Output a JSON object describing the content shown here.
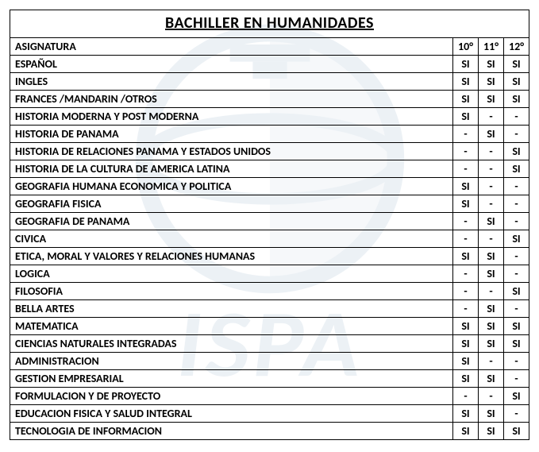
{
  "title": "BACHILLER EN HUMANIDADES",
  "header": {
    "subject": "ASIGNATURA",
    "g10": "10°",
    "g11": "11°",
    "g12": "12°"
  },
  "rows": [
    {
      "subject": "ESPAÑOL",
      "g10": "SI",
      "g11": "SI",
      "g12": "SI"
    },
    {
      "subject": "INGLES",
      "g10": "SI",
      "g11": "SI",
      "g12": "SI"
    },
    {
      "subject": "FRANCES /MANDARIN /OTROS",
      "g10": "SI",
      "g11": "SI",
      "g12": "SI"
    },
    {
      "subject": "HISTORIA MODERNA Y POST MODERNA",
      "g10": "SI",
      "g11": "-",
      "g12": "-"
    },
    {
      "subject": "HISTORIA DE PANAMA",
      "g10": "-",
      "g11": "SI",
      "g12": "-"
    },
    {
      "subject": "HISTORIA DE RELACIONES PANAMA Y ESTADOS UNIDOS",
      "g10": "-",
      "g11": "-",
      "g12": "SI"
    },
    {
      "subject": "HISTORIA DE LA CULTURA DE AMERICA LATINA",
      "g10": "-",
      "g11": "-",
      "g12": "SI"
    },
    {
      "subject": "GEOGRAFIA HUMANA ECONOMICA Y POLITICA",
      "g10": "SI",
      "g11": "-",
      "g12": "-"
    },
    {
      "subject": "GEOGRAFIA FISICA",
      "g10": "SI",
      "g11": "-",
      "g12": "-"
    },
    {
      "subject": "GEOGRAFIA DE PANAMA",
      "g10": "-",
      "g11": "SI",
      "g12": "-"
    },
    {
      "subject": "CIVICA",
      "g10": "-",
      "g11": "-",
      "g12": "SI"
    },
    {
      "subject": "ETICA, MORAL Y VALORES Y RELACIONES HUMANAS",
      "g10": "SI",
      "g11": "SI",
      "g12": "-"
    },
    {
      "subject": "LOGICA",
      "g10": "-",
      "g11": "SI",
      "g12": "-"
    },
    {
      "subject": "FILOSOFIA",
      "g10": "-",
      "g11": "-",
      "g12": "SI"
    },
    {
      "subject": "BELLA ARTES",
      "g10": "-",
      "g11": "SI",
      "g12": "-"
    },
    {
      "subject": "MATEMATICA",
      "g10": "SI",
      "g11": "SI",
      "g12": "SI"
    },
    {
      "subject": "CIENCIAS NATURALES INTEGRADAS",
      "g10": "SI",
      "g11": "SI",
      "g12": "SI"
    },
    {
      "subject": "ADMINISTRACION",
      "g10": "SI",
      "g11": "-",
      "g12": "-"
    },
    {
      "subject": "GESTION EMPRESARIAL",
      "g10": "SI",
      "g11": "SI",
      "g12": "-"
    },
    {
      "subject": "FORMULACION Y DE PROYECTO",
      "g10": "-",
      "g11": "-",
      "g12": "SI"
    },
    {
      "subject": "EDUCACION FISICA Y SALUD INTEGRAL",
      "g10": "SI",
      "g11": "SI",
      "g12": "-"
    },
    {
      "subject": "TECNOLOGIA DE INFORMACION",
      "g10": "SI",
      "g11": "SI",
      "g12": "SI"
    }
  ]
}
